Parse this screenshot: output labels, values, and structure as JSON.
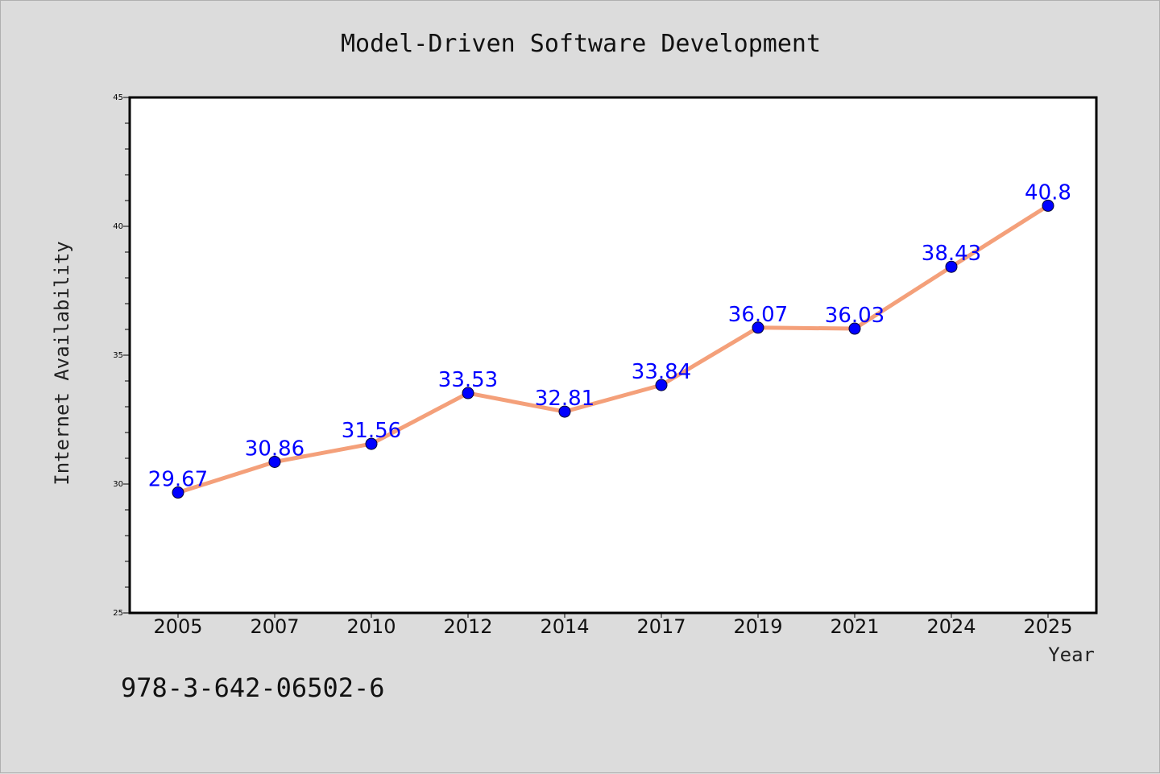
{
  "chart_data": {
    "type": "line",
    "title": "Model-Driven Software Development",
    "xlabel": "Year",
    "ylabel": "Internet Availability",
    "categories": [
      "2005",
      "2007",
      "2010",
      "2012",
      "2014",
      "2017",
      "2019",
      "2021",
      "2024",
      "2025"
    ],
    "values": [
      29.67,
      30.86,
      31.56,
      33.53,
      32.81,
      33.84,
      36.07,
      36.03,
      38.43,
      40.8
    ],
    "data_labels": [
      "29.67",
      "30.86",
      "31.56",
      "33.53",
      "32.81",
      "33.84",
      "36.07",
      "36.03",
      "38.43",
      "40.8"
    ],
    "ylim": [
      25,
      45
    ],
    "yticks": [
      "25",
      "30",
      "35",
      "40",
      "45"
    ],
    "line_color": "#f4a07a",
    "marker_color": "#0000ff",
    "label_color": "#0000ff",
    "grid": false
  },
  "footer": {
    "isbn": "978-3-642-06502-6"
  }
}
